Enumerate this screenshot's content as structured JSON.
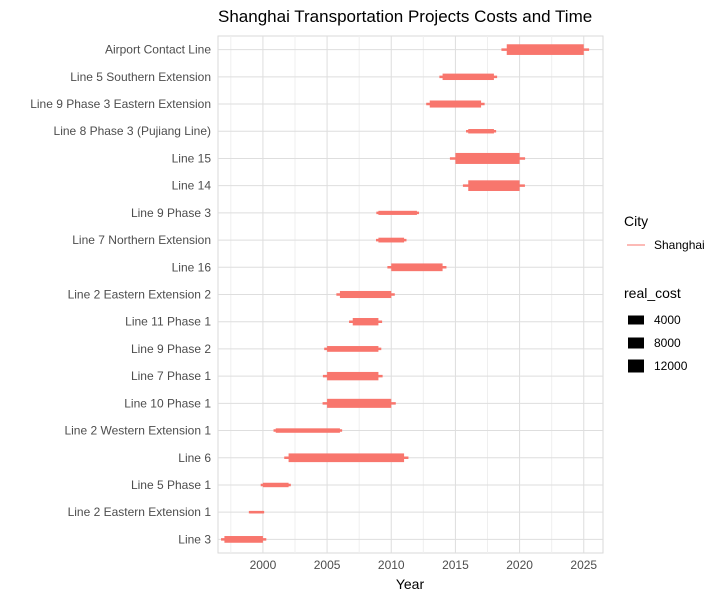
{
  "chart_data": {
    "type": "bar",
    "title": "Shanghai Transportation Projects Costs and Time",
    "xlabel": "Year",
    "ylabel": "",
    "xlim": [
      1996.5,
      2026.5
    ],
    "x_ticks": [
      2000,
      2005,
      2010,
      2015,
      2020,
      2025
    ],
    "grid": true,
    "legend_position": "right",
    "series_color": "#F8766D",
    "legend": {
      "color_title": "City",
      "color_items": [
        "Shanghai"
      ],
      "size_title": "real_cost",
      "size_items": [
        "4000",
        "8000",
        "12000"
      ]
    },
    "projects": [
      {
        "line": "Airport Contact Line",
        "start": 2019,
        "end": 2025,
        "real_cost": 14000
      },
      {
        "line": "Line 5 Southern Extension",
        "start": 2014,
        "end": 2018,
        "real_cost": 7500
      },
      {
        "line": "Line 9 Phase 3 Eastern Extension",
        "start": 2013,
        "end": 2017,
        "real_cost": 8500
      },
      {
        "line": "Line 8 Phase 3 (Pujiang Line)",
        "start": 2016,
        "end": 2018,
        "real_cost": 4500
      },
      {
        "line": "Line 15",
        "start": 2015,
        "end": 2020,
        "real_cost": 14500
      },
      {
        "line": "Line 14",
        "start": 2016,
        "end": 2020,
        "real_cost": 14000
      },
      {
        "line": "Line 9 Phase 3",
        "start": 2009,
        "end": 2012,
        "real_cost": 4000
      },
      {
        "line": "Line 7 Northern Extension",
        "start": 2009,
        "end": 2011,
        "real_cost": 5000
      },
      {
        "line": "Line 16",
        "start": 2010,
        "end": 2014,
        "real_cost": 9500
      },
      {
        "line": "Line 2 Eastern Extension 2",
        "start": 2006,
        "end": 2010,
        "real_cost": 8500
      },
      {
        "line": "Line 11 Phase 1",
        "start": 2007,
        "end": 2009,
        "real_cost": 9000
      },
      {
        "line": "Line 9 Phase 2",
        "start": 2005,
        "end": 2009,
        "real_cost": 6500
      },
      {
        "line": "Line 7 Phase 1",
        "start": 2005,
        "end": 2009,
        "real_cost": 10500
      },
      {
        "line": "Line 10 Phase 1",
        "start": 2005,
        "end": 2010,
        "real_cost": 11500
      },
      {
        "line": "Line 2 Western Extension 1",
        "start": 2001,
        "end": 2006,
        "real_cost": 4500
      },
      {
        "line": "Line 6",
        "start": 2002,
        "end": 2011,
        "real_cost": 11000
      },
      {
        "line": "Line 5 Phase 1",
        "start": 2000,
        "end": 2002,
        "real_cost": 4500
      },
      {
        "line": "Line 2 Eastern Extension 1",
        "start": 1999,
        "end": 2000,
        "real_cost": 1500
      },
      {
        "line": "Line 3",
        "start": 1997,
        "end": 2000,
        "real_cost": 8000
      }
    ]
  }
}
